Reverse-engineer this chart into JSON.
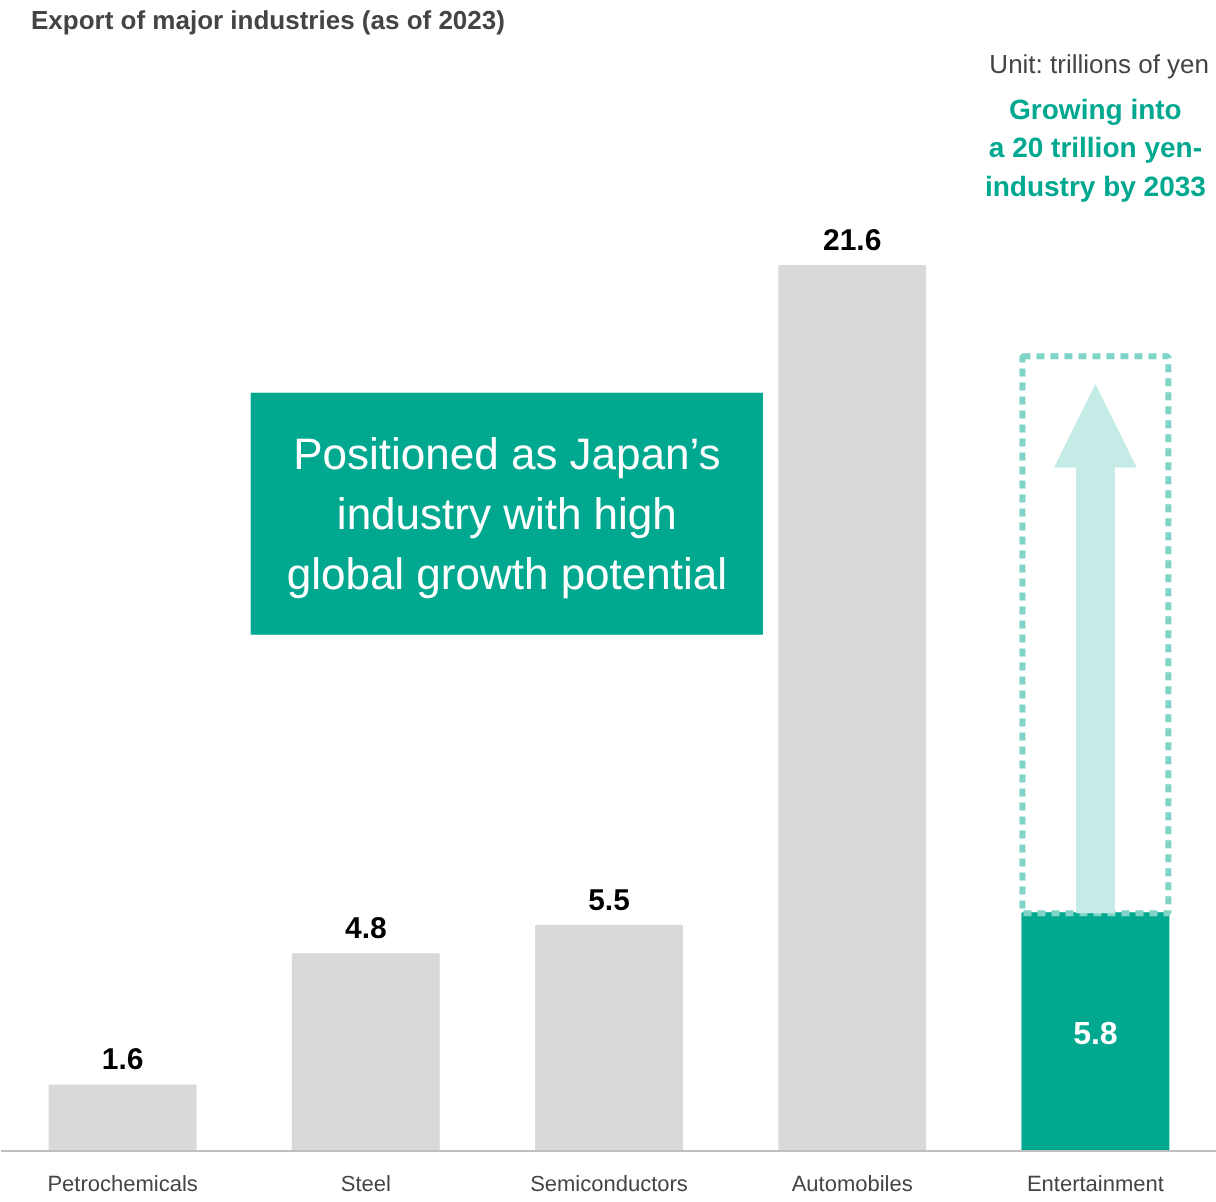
{
  "chart_data": {
    "type": "bar",
    "title": "Export of major industries (as of 2023)",
    "stacked": true,
    "categories": [
      "Petrochemicals",
      "Steel",
      "Semiconductors",
      "Automobiles",
      "Entertainment"
    ],
    "series": [
      {
        "colors": [
          "#d9d9d9",
          "#d9d9d9",
          "#d9d9d9",
          "#d9d9d9",
          "#00a88f"
        ],
        "values": [
          1.6,
          4.8,
          5.5,
          21.6,
          5.8
        ],
        "data_labels": true
      },
      {
        "color": "#80d4c7",
        "line_style": "dashed",
        "values": [
          null,
          null,
          null,
          null,
          13.6
        ]
      }
    ],
    "annotations": [
      "Unit: trillions of yen",
      "Growing into\na 20 trillion yen-\nindustry by 2033",
      "Positioned as Japan’s\nindustry with high\nglobal growth potential"
    ]
  }
}
